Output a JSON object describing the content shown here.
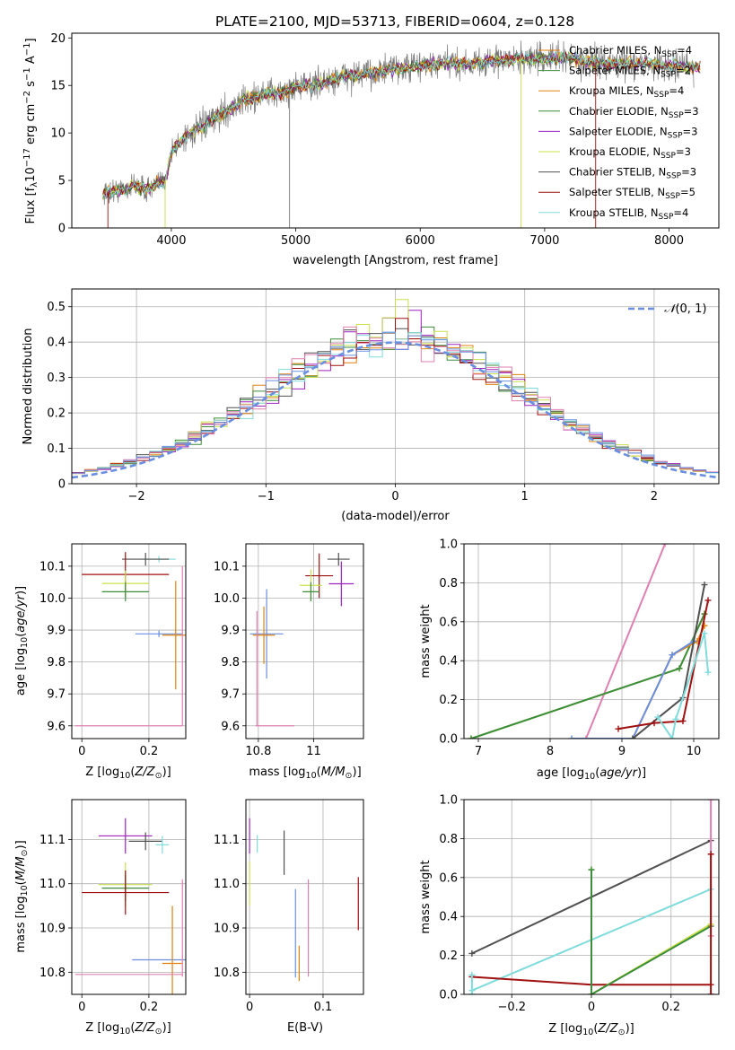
{
  "title": "PLATE=2100, MJD=53713, FIBERID=0604, z=0.128",
  "colors": [
    "#e0820f",
    "#3c8c3c",
    "#a020c0",
    "#c8e04a",
    "#505050",
    "#a01010",
    "#80dcdc",
    "#e080b0",
    "#6a8fe0"
  ],
  "chart_data": [
    {
      "type": "line",
      "name": "spectrum",
      "xlabel": "wavelength [Angstrom, rest frame]",
      "ylabel": "Flux [f_λ 10^-17 erg cm^-2 s^-1 A^-1]",
      "xlim": [
        3200,
        8400
      ],
      "ylim": [
        0,
        20.5
      ],
      "xticks": [
        4000,
        5000,
        6000,
        7000,
        8000
      ],
      "yticks": [
        0,
        5,
        10,
        15,
        20
      ],
      "continuum": [
        [
          3450,
          3.7
        ],
        [
          3600,
          4.0
        ],
        [
          3700,
          4.5
        ],
        [
          3800,
          4.0
        ],
        [
          3950,
          5.0
        ],
        [
          4000,
          8.0
        ],
        [
          4100,
          9.5
        ],
        [
          4200,
          10.3
        ],
        [
          4300,
          11.0
        ],
        [
          4400,
          12.0
        ],
        [
          4500,
          12.7
        ],
        [
          4600,
          13.6
        ],
        [
          4700,
          13.8
        ],
        [
          4800,
          14.2
        ],
        [
          4900,
          14.2
        ],
        [
          5000,
          14.9
        ],
        [
          5100,
          15.0
        ],
        [
          5200,
          15.2
        ],
        [
          5300,
          15.6
        ],
        [
          5400,
          16.0
        ],
        [
          5500,
          16.0
        ],
        [
          5600,
          16.3
        ],
        [
          5700,
          16.5
        ],
        [
          5800,
          16.8
        ],
        [
          5900,
          16.8
        ],
        [
          6000,
          17.1
        ],
        [
          6200,
          17.3
        ],
        [
          6400,
          17.3
        ],
        [
          6600,
          17.6
        ],
        [
          6800,
          17.8
        ],
        [
          7000,
          17.8
        ],
        [
          7200,
          17.9
        ],
        [
          7400,
          17.4
        ],
        [
          7600,
          17.2
        ],
        [
          7800,
          17.4
        ],
        [
          8000,
          17.1
        ],
        [
          8200,
          16.9
        ]
      ],
      "series": [
        {
          "name": "Chabrier MILES, N_SSP=4",
          "label": "Chabrier MILES, N",
          "sub": "SSP",
          "suffix": "=4",
          "color": "#e0820f"
        },
        {
          "name": "Salpeter MILES, N_SSP=2",
          "label": "Salpeter MILES, N",
          "sub": "SSP",
          "suffix": "=2",
          "color": "#3c8c3c"
        },
        {
          "name": "Kroupa MILES, N_SSP=4",
          "label": "Kroupa MILES, N",
          "sub": "SSP",
          "suffix": "=4",
          "color": "#e0820f"
        },
        {
          "name": "Chabrier ELODIE, N_SSP=3",
          "label": "Chabrier ELODIE, N",
          "sub": "SSP",
          "suffix": "=3",
          "color": "#3c8c3c"
        },
        {
          "name": "Salpeter ELODIE, N_SSP=3",
          "label": "Salpeter ELODIE, N",
          "sub": "SSP",
          "suffix": "=3",
          "color": "#a020c0"
        },
        {
          "name": "Kroupa ELODIE, N_SSP=3",
          "label": "Kroupa ELODIE, N",
          "sub": "SSP",
          "suffix": "=3",
          "color": "#c8e04a"
        },
        {
          "name": "Chabrier STELIB, N_SSP=3",
          "label": "Chabrier STELIB, N",
          "sub": "SSP",
          "suffix": "=3",
          "color": "#505050"
        },
        {
          "name": "Salpeter STELIB, N_SSP=5",
          "label": "Salpeter STELIB, N",
          "sub": "SSP",
          "suffix": "=5",
          "color": "#a01010"
        },
        {
          "name": "Kroupa STELIB, N_SSP=4",
          "label": "Kroupa STELIB, N",
          "sub": "SSP",
          "suffix": "=4",
          "color": "#80dcdc"
        }
      ]
    },
    {
      "type": "histogram",
      "name": "residuals",
      "xlabel": "(data-model)/error",
      "ylabel": "Normed distribution",
      "xlim": [
        -2.5,
        2.5
      ],
      "ylim": [
        0,
        0.55
      ],
      "xticks": [
        -2,
        -1,
        0,
        1,
        2
      ],
      "yticks": [
        0.0,
        0.1,
        0.2,
        0.3,
        0.4,
        0.5
      ],
      "bin_width": 0.1,
      "legend": "N(0,1)",
      "gaussian": {
        "mu": 0,
        "sigma": 1,
        "color": "#6a8fe0"
      },
      "spikes": {
        "0.0": 0.52,
        "0.1": 0.49,
        "-0.3": 0.45
      }
    },
    {
      "type": "scatter",
      "name": "age-vs-Z",
      "xlabel": "Z [log10(Z/Z⊙)]",
      "ylabel": "age [log10(age/yr)]",
      "xlim": [
        -0.03,
        0.31
      ],
      "ylim": [
        9.56,
        10.17
      ],
      "xticks": [
        0.0,
        0.2
      ],
      "yticks": [
        9.6,
        9.7,
        9.8,
        9.9,
        10.0,
        10.1
      ],
      "points": [
        {
          "x": 0.23,
          "y": 10.122,
          "xe": 0.05,
          "ye": 0.01,
          "color": "#80dcdc"
        },
        {
          "x": 0.19,
          "y": 10.122,
          "xe": 0.07,
          "ye": 0.02,
          "color": "#505050"
        },
        {
          "x": 0.13,
          "y": 10.074,
          "xe": 0.13,
          "ye": 0.07,
          "color": "#a01010"
        },
        {
          "x": 0.13,
          "y": 10.046,
          "xe": 0.07,
          "ye": 0.04,
          "color": "#c8e04a"
        },
        {
          "x": 0.13,
          "y": 10.02,
          "xe": 0.07,
          "ye": 0.03,
          "color": "#3c8c3c"
        },
        {
          "x": 0.23,
          "y": 9.888,
          "xe": 0.07,
          "ye": 0.01,
          "color": "#6a8fe0"
        },
        {
          "x": 0.28,
          "y": 9.884,
          "xe": 0.04,
          "ye": 0.17,
          "color": "#e0820f"
        },
        {
          "x": 0.14,
          "y": 9.6,
          "xe": 0.16,
          "ye": 0.0,
          "color": "#e080b0"
        },
        {
          "x": 0.3,
          "y": 9.85,
          "xe": 0.0,
          "ye": 0.25,
          "color": "#e080b0"
        }
      ]
    },
    {
      "type": "scatter",
      "name": "age-vs-mass",
      "xlabel": "mass [log10(M/M⊙)]",
      "ylabel": "",
      "xlim": [
        10.755,
        11.18
      ],
      "ylim": [
        9.56,
        10.17
      ],
      "xticks": [
        10.8,
        11.0
      ],
      "yticks": [
        9.6,
        9.7,
        9.8,
        9.9,
        10.0,
        10.1
      ],
      "points": [
        {
          "x": 11.09,
          "y": 10.122,
          "xe": 0.04,
          "ye": 0.02,
          "color": "#505050"
        },
        {
          "x": 11.1,
          "y": 10.045,
          "xe": 0.045,
          "ye": 0.07,
          "color": "#a020c0"
        },
        {
          "x": 11.02,
          "y": 10.07,
          "xe": 0.05,
          "ye": 0.07,
          "color": "#a01010"
        },
        {
          "x": 10.99,
          "y": 10.04,
          "xe": 0.04,
          "ye": 0.05,
          "color": "#c8e04a"
        },
        {
          "x": 10.99,
          "y": 10.02,
          "xe": 0.03,
          "ye": 0.03,
          "color": "#3c8c3c"
        },
        {
          "x": 10.83,
          "y": 9.888,
          "xe": 0.06,
          "ye": 0.14,
          "color": "#6a8fe0"
        },
        {
          "x": 10.82,
          "y": 9.884,
          "xe": 0.04,
          "ye": 0.09,
          "color": "#e0820f"
        },
        {
          "x": 10.86,
          "y": 9.6,
          "xe": 0.07,
          "ye": 0.0,
          "color": "#e080b0"
        },
        {
          "x": 10.795,
          "y": 9.78,
          "xe": 0.0,
          "ye": 0.18,
          "color": "#e080b0"
        }
      ]
    },
    {
      "type": "line",
      "name": "weight-vs-age",
      "xlabel": "age [log10(age/yr)]",
      "ylabel": "mass weight",
      "xlim": [
        6.8,
        10.35
      ],
      "ylim": [
        0,
        1.0
      ],
      "xticks": [
        7,
        8,
        9,
        10
      ],
      "yticks": [
        0.0,
        0.2,
        0.4,
        0.6,
        0.8,
        1.0
      ],
      "series": [
        {
          "color": "#e080b0",
          "x": [
            8.5,
            9.6
          ],
          "y": [
            0.0,
            1.0
          ]
        },
        {
          "color": "#c8e04a",
          "x": [
            6.9,
            9.8,
            10.15
          ],
          "y": [
            0.0,
            0.36,
            0.64
          ]
        },
        {
          "color": "#3c8c3c",
          "x": [
            6.9,
            9.8,
            10.15
          ],
          "y": [
            0.0,
            0.36,
            0.64
          ]
        },
        {
          "color": "#e0820f",
          "x": [
            9.15,
            9.7,
            10.05,
            10.15
          ],
          "y": [
            0.0,
            0.43,
            0.5,
            0.58
          ]
        },
        {
          "color": "#6a8fe0",
          "x": [
            8.3,
            9.15,
            9.7,
            10.0
          ],
          "y": [
            0.0,
            0.0,
            0.43,
            0.5
          ]
        },
        {
          "color": "#505050",
          "x": [
            9.15,
            9.85,
            10.15
          ],
          "y": [
            0.0,
            0.21,
            0.79
          ]
        },
        {
          "color": "#a01010",
          "x": [
            8.95,
            9.45,
            9.85,
            10.2
          ],
          "y": [
            0.05,
            0.08,
            0.09,
            0.71
          ]
        },
        {
          "color": "#80dcdc",
          "x": [
            9.5,
            9.7,
            9.75,
            10.15,
            10.2
          ],
          "y": [
            0.11,
            0.0,
            0.1,
            0.54,
            0.34
          ]
        }
      ]
    },
    {
      "type": "scatter",
      "name": "mass-vs-Z",
      "xlabel": "Z [log10(Z/Z⊙)]",
      "ylabel": "mass [log10(M/M⊙)]",
      "xlim": [
        -0.03,
        0.31
      ],
      "ylim": [
        10.75,
        11.19
      ],
      "xticks": [
        0.0,
        0.2
      ],
      "yticks": [
        10.8,
        10.9,
        11.0,
        11.1
      ],
      "points": [
        {
          "x": 0.13,
          "y": 11.108,
          "xe": 0.08,
          "ye": 0.04,
          "color": "#a020c0"
        },
        {
          "x": 0.19,
          "y": 11.096,
          "xe": 0.05,
          "ye": 0.02,
          "color": "#505050"
        },
        {
          "x": 0.24,
          "y": 11.088,
          "xe": 0.02,
          "ye": 0.02,
          "color": "#80dcdc"
        },
        {
          "x": 0.13,
          "y": 10.998,
          "xe": 0.08,
          "ye": 0.05,
          "color": "#c8e04a"
        },
        {
          "x": 0.13,
          "y": 10.99,
          "xe": 0.07,
          "ye": 0.03,
          "color": "#3c8c3c"
        },
        {
          "x": 0.13,
          "y": 10.98,
          "xe": 0.13,
          "ye": 0.05,
          "color": "#a01010"
        },
        {
          "x": 0.23,
          "y": 10.828,
          "xe": 0.08,
          "ye": 0.0,
          "color": "#6a8fe0"
        },
        {
          "x": 0.27,
          "y": 10.82,
          "xe": 0.03,
          "ye": 0.13,
          "color": "#e0820f"
        },
        {
          "x": 0.14,
          "y": 10.795,
          "xe": 0.16,
          "ye": 0.0,
          "color": "#e080b0"
        },
        {
          "x": 0.3,
          "y": 10.9,
          "xe": 0.0,
          "ye": 0.11,
          "color": "#e080b0"
        }
      ]
    },
    {
      "type": "scatter",
      "name": "mass-vs-EBV",
      "xlabel": "E(B-V)",
      "ylabel": "",
      "xlim": [
        -0.005,
        0.155
      ],
      "ylim": [
        10.75,
        11.19
      ],
      "xticks": [
        0.0,
        0.1
      ],
      "yticks": [
        10.8,
        10.9,
        11.0,
        11.1
      ],
      "points": [
        {
          "x": 0.0,
          "y": 11.108,
          "xe": 0.0,
          "ye": 0.04,
          "color": "#a020c0"
        },
        {
          "x": 0.0105,
          "y": 11.09,
          "xe": 0.0,
          "ye": 0.02,
          "color": "#80dcdc"
        },
        {
          "x": 0.047,
          "y": 11.07,
          "xe": 0.0,
          "ye": 0.05,
          "color": "#505050"
        },
        {
          "x": 0.0,
          "y": 11.0,
          "xe": 0.0,
          "ye": 0.05,
          "color": "#c8e04a"
        },
        {
          "x": 0.0625,
          "y": 10.888,
          "xe": 0.0,
          "ye": 0.1,
          "color": "#6a8fe0"
        },
        {
          "x": 0.0675,
          "y": 10.82,
          "xe": 0.0,
          "ye": 0.04,
          "color": "#e0820f"
        },
        {
          "x": 0.08,
          "y": 10.9,
          "xe": 0.0,
          "ye": 0.11,
          "color": "#e080b0"
        },
        {
          "x": 0.148,
          "y": 10.955,
          "xe": 0.0,
          "ye": 0.06,
          "color": "#a01010"
        }
      ]
    },
    {
      "type": "line",
      "name": "weight-vs-Z",
      "xlabel": "Z [log10(Z/Z⊙)]",
      "ylabel": "mass weight",
      "xlim": [
        -0.32,
        0.32
      ],
      "ylim": [
        0,
        1.0
      ],
      "xticks": [
        -0.2,
        0.0,
        0.2
      ],
      "yticks": [
        0.0,
        0.2,
        0.4,
        0.6,
        0.8,
        1.0
      ],
      "series": [
        {
          "color": "#505050",
          "x": [
            -0.3,
            0.3
          ],
          "y": [
            0.21,
            0.79
          ]
        },
        {
          "color": "#80dcdc",
          "x": [
            -0.3,
            0.3
          ],
          "y": [
            0.02,
            0.54
          ]
        },
        {
          "color": "#a01010",
          "x": [
            -0.3,
            0.0,
            0.3
          ],
          "y": [
            0.09,
            0.05,
            0.05
          ]
        },
        {
          "color": "#c8e04a",
          "x": [
            0.0,
            0.0,
            0.3
          ],
          "y": [
            0.64,
            0.0,
            0.36
          ]
        },
        {
          "color": "#3c8c3c",
          "x": [
            0.0,
            0.0,
            0.3
          ],
          "y": [
            0.64,
            0.0,
            0.35
          ]
        },
        {
          "color": "#e080b0",
          "x": [
            0.3,
            0.3
          ],
          "y": [
            0.3,
            1.0
          ]
        },
        {
          "color": "#a01010",
          "x": [
            0.3,
            0.3
          ],
          "y": [
            0.0,
            0.72
          ]
        },
        {
          "color": "#80dcdc",
          "x": [
            -0.3,
            -0.3
          ],
          "y": [
            0.0,
            0.1
          ]
        }
      ]
    }
  ]
}
